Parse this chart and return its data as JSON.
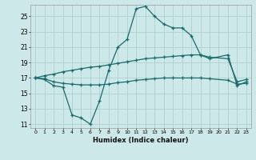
{
  "xlabel": "Humidex (Indice chaleur)",
  "background_color": "#cce8e8",
  "grid_color": "#aacccc",
  "line_color": "#1a6b6b",
  "xlim": [
    -0.5,
    23.5
  ],
  "ylim": [
    10.5,
    26.5
  ],
  "xticks": [
    0,
    1,
    2,
    3,
    4,
    5,
    6,
    7,
    8,
    9,
    10,
    11,
    12,
    13,
    14,
    15,
    16,
    17,
    18,
    19,
    20,
    21,
    22,
    23
  ],
  "yticks": [
    11,
    13,
    15,
    17,
    19,
    21,
    23,
    25
  ],
  "line1_x": [
    0,
    1,
    2,
    3,
    4,
    5,
    6,
    7,
    8,
    9,
    10,
    11,
    12,
    13,
    14,
    15,
    16,
    17,
    18,
    19,
    21,
    22,
    23
  ],
  "line1_y": [
    17.0,
    16.8,
    16.0,
    15.8,
    12.2,
    11.8,
    11.0,
    14.0,
    18.0,
    21.0,
    22.0,
    26.0,
    26.3,
    25.0,
    24.0,
    23.5,
    23.5,
    22.5,
    20.0,
    19.5,
    20.0,
    16.0,
    16.5
  ],
  "line2_x": [
    0,
    1,
    2,
    3,
    4,
    5,
    6,
    7,
    8,
    9,
    10,
    11,
    12,
    13,
    14,
    15,
    16,
    17,
    18,
    19,
    21,
    22,
    23
  ],
  "line2_y": [
    17.0,
    17.3,
    17.5,
    17.8,
    18.0,
    18.2,
    18.4,
    18.5,
    18.7,
    18.9,
    19.1,
    19.3,
    19.5,
    19.6,
    19.7,
    19.8,
    19.9,
    20.0,
    20.0,
    19.7,
    19.5,
    16.5,
    16.8
  ],
  "line3_x": [
    0,
    1,
    2,
    3,
    4,
    5,
    6,
    7,
    8,
    9,
    10,
    11,
    12,
    13,
    14,
    15,
    16,
    17,
    18,
    19,
    21,
    22,
    23
  ],
  "line3_y": [
    17.0,
    16.9,
    16.5,
    16.3,
    16.2,
    16.1,
    16.1,
    16.1,
    16.2,
    16.4,
    16.5,
    16.7,
    16.8,
    16.9,
    17.0,
    17.0,
    17.0,
    17.0,
    17.0,
    16.9,
    16.7,
    16.2,
    16.3
  ]
}
